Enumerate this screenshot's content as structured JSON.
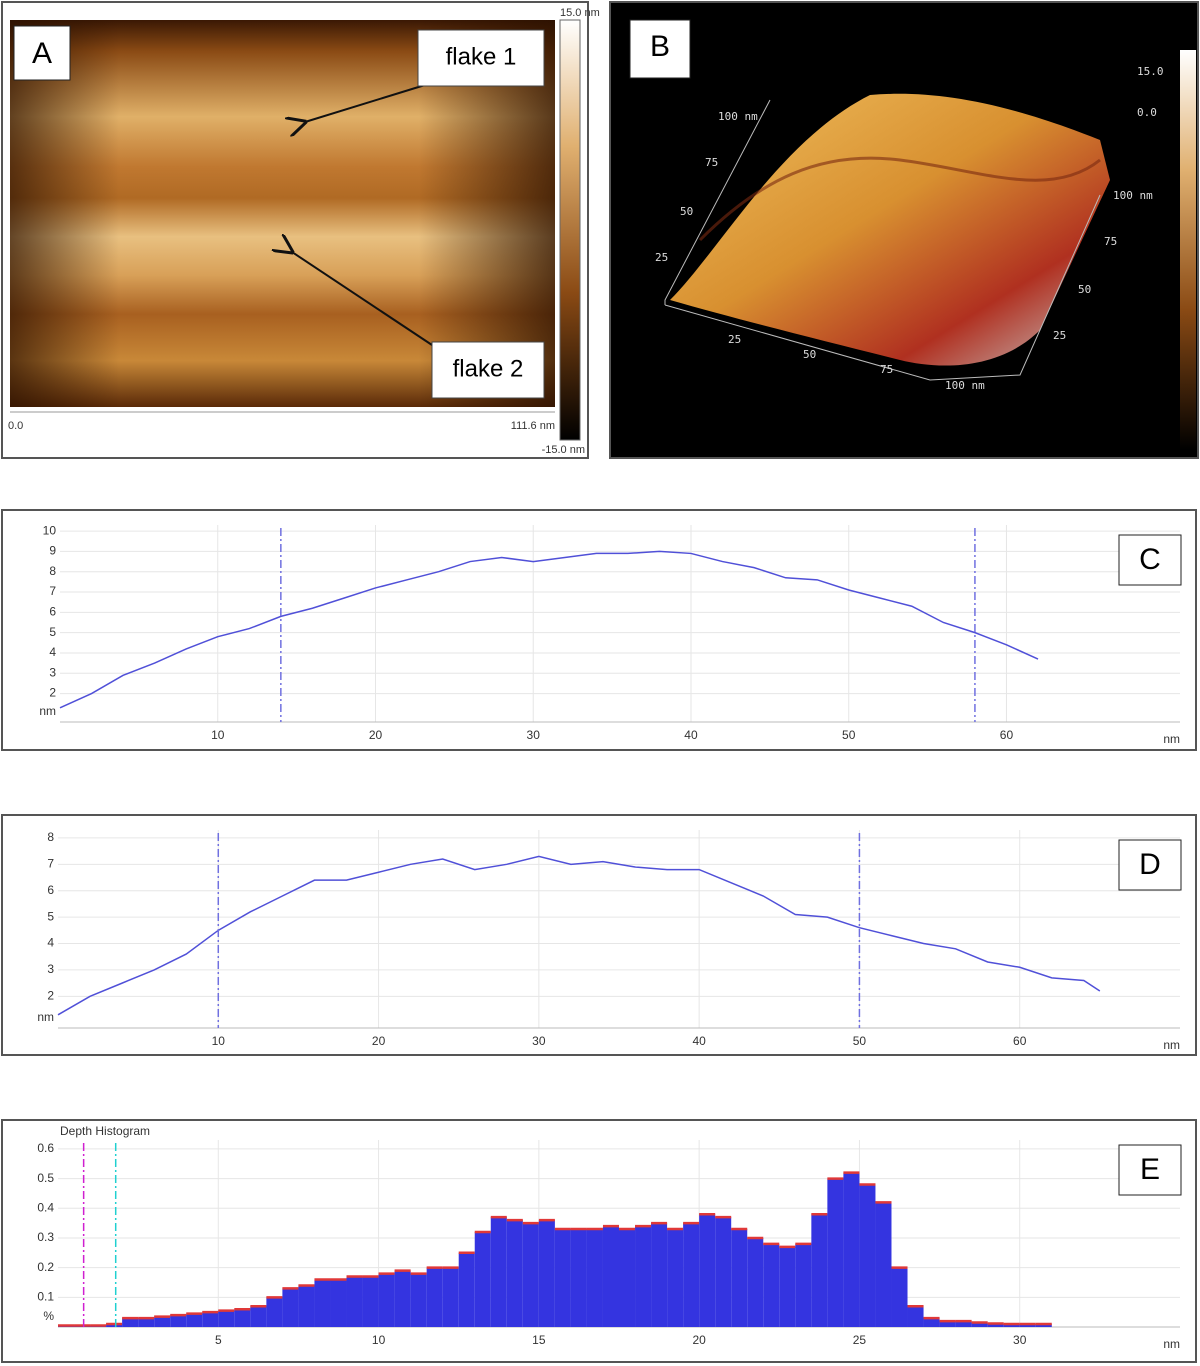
{
  "panel_a": {
    "label": "A",
    "callouts": [
      "flake 1",
      "flake 2"
    ],
    "scale_max": "15.0 nm",
    "scale_min": "-15.0 nm",
    "axis_start": "0.0",
    "axis_end": "111.6 nm"
  },
  "panel_b": {
    "label": "B",
    "scale_max": "15.0",
    "scale_mid": "0.0",
    "left_axis": [
      "100 nm",
      "75",
      "50",
      "25"
    ],
    "front_axis": [
      "25",
      "50",
      "75",
      "100 nm"
    ],
    "right_axis": [
      "100 nm",
      "75",
      "50",
      "25"
    ]
  },
  "chart_data": [
    {
      "type": "line",
      "label": "C",
      "x_unit": "nm",
      "y_unit": "nm",
      "color": "#5050d8",
      "cursor_color": "#7070e0",
      "x": [
        0,
        2,
        4,
        6,
        8,
        10,
        12,
        14,
        16,
        18,
        20,
        22,
        24,
        26,
        28,
        30,
        32,
        34,
        36,
        38,
        40,
        42,
        44,
        46,
        48,
        50,
        52,
        54,
        56,
        58,
        60,
        62
      ],
      "values": [
        1.3,
        2.0,
        2.9,
        3.5,
        4.2,
        4.8,
        5.2,
        5.8,
        6.2,
        6.7,
        7.2,
        7.6,
        8.0,
        8.5,
        8.7,
        8.5,
        8.7,
        8.9,
        8.9,
        9.0,
        8.9,
        8.5,
        8.2,
        7.7,
        7.6,
        7.1,
        6.7,
        6.3,
        5.5,
        5.0,
        4.4,
        3.7
      ],
      "cursors": [
        14,
        58
      ],
      "xlim": [
        0,
        71
      ],
      "xticks": [
        10,
        20,
        30,
        40,
        50,
        60
      ],
      "ylim": [
        0.6,
        10.3
      ],
      "yticks": [
        2,
        3,
        4,
        5,
        6,
        7,
        8,
        9,
        10
      ],
      "grid": true
    },
    {
      "type": "line",
      "label": "D",
      "x_unit": "nm",
      "y_unit": "nm",
      "color": "#5050d8",
      "cursor_color": "#7070e0",
      "x": [
        0,
        2,
        4,
        6,
        8,
        10,
        12,
        14,
        16,
        18,
        20,
        22,
        24,
        26,
        28,
        30,
        32,
        34,
        36,
        38,
        40,
        42,
        44,
        46,
        48,
        50,
        52,
        54,
        56,
        58,
        60,
        62,
        64,
        65
      ],
      "values": [
        1.3,
        2.0,
        2.5,
        3.0,
        3.6,
        4.5,
        5.2,
        5.8,
        6.4,
        6.4,
        6.7,
        7.0,
        7.2,
        6.8,
        7.0,
        7.3,
        7.0,
        7.1,
        6.9,
        6.8,
        6.8,
        6.3,
        5.8,
        5.1,
        5.0,
        4.6,
        4.3,
        4.0,
        3.8,
        3.3,
        3.1,
        2.7,
        2.6,
        2.2
      ],
      "cursors": [
        10,
        50
      ],
      "xlim": [
        0,
        70
      ],
      "xticks": [
        10,
        20,
        30,
        40,
        50,
        60
      ],
      "ylim": [
        0.8,
        8.3
      ],
      "yticks": [
        2,
        3,
        4,
        5,
        6,
        7,
        8
      ],
      "grid": true
    },
    {
      "type": "histogram",
      "label": "E",
      "title": "Depth Histogram",
      "x_unit": "nm",
      "y_unit": "%",
      "color": "#3434e0",
      "edge_color": "#e03838",
      "bins": [
        0,
        0.5,
        1,
        1.5,
        2,
        2.5,
        3,
        3.5,
        4,
        4.5,
        5,
        5.5,
        6,
        6.5,
        7,
        7.5,
        8,
        8.5,
        9,
        9.5,
        10,
        10.5,
        11,
        11.5,
        12,
        12.5,
        13,
        13.5,
        14,
        14.5,
        15,
        15.5,
        16,
        16.5,
        17,
        17.5,
        18,
        18.5,
        19,
        19.5,
        20,
        20.5,
        21,
        21.5,
        22,
        22.5,
        23,
        23.5,
        24,
        24.5,
        25,
        25.5,
        26,
        26.5,
        27,
        27.5,
        28,
        28.5,
        29,
        29.5,
        30,
        30.5,
        31
      ],
      "values": [
        0.005,
        0.005,
        0.005,
        0.01,
        0.03,
        0.03,
        0.035,
        0.04,
        0.045,
        0.05,
        0.055,
        0.06,
        0.07,
        0.1,
        0.13,
        0.14,
        0.16,
        0.16,
        0.17,
        0.17,
        0.18,
        0.19,
        0.18,
        0.2,
        0.2,
        0.25,
        0.32,
        0.37,
        0.36,
        0.35,
        0.36,
        0.33,
        0.33,
        0.33,
        0.34,
        0.33,
        0.34,
        0.35,
        0.33,
        0.35,
        0.38,
        0.37,
        0.33,
        0.3,
        0.28,
        0.27,
        0.28,
        0.38,
        0.5,
        0.52,
        0.48,
        0.42,
        0.2,
        0.07,
        0.03,
        0.02,
        0.02,
        0.015,
        0.012,
        0.01,
        0.01,
        0.01
      ],
      "cursors": [
        0.8,
        1.8
      ],
      "cursor_colors": [
        "#d020d0",
        "#20d0d0"
      ],
      "xlim": [
        0,
        35
      ],
      "xticks": [
        5,
        10,
        15,
        20,
        25,
        30
      ],
      "ylim": [
        0,
        0.63
      ],
      "yticks": [
        0.1,
        0.2,
        0.3,
        0.4,
        0.5,
        0.6
      ],
      "grid": true
    }
  ]
}
